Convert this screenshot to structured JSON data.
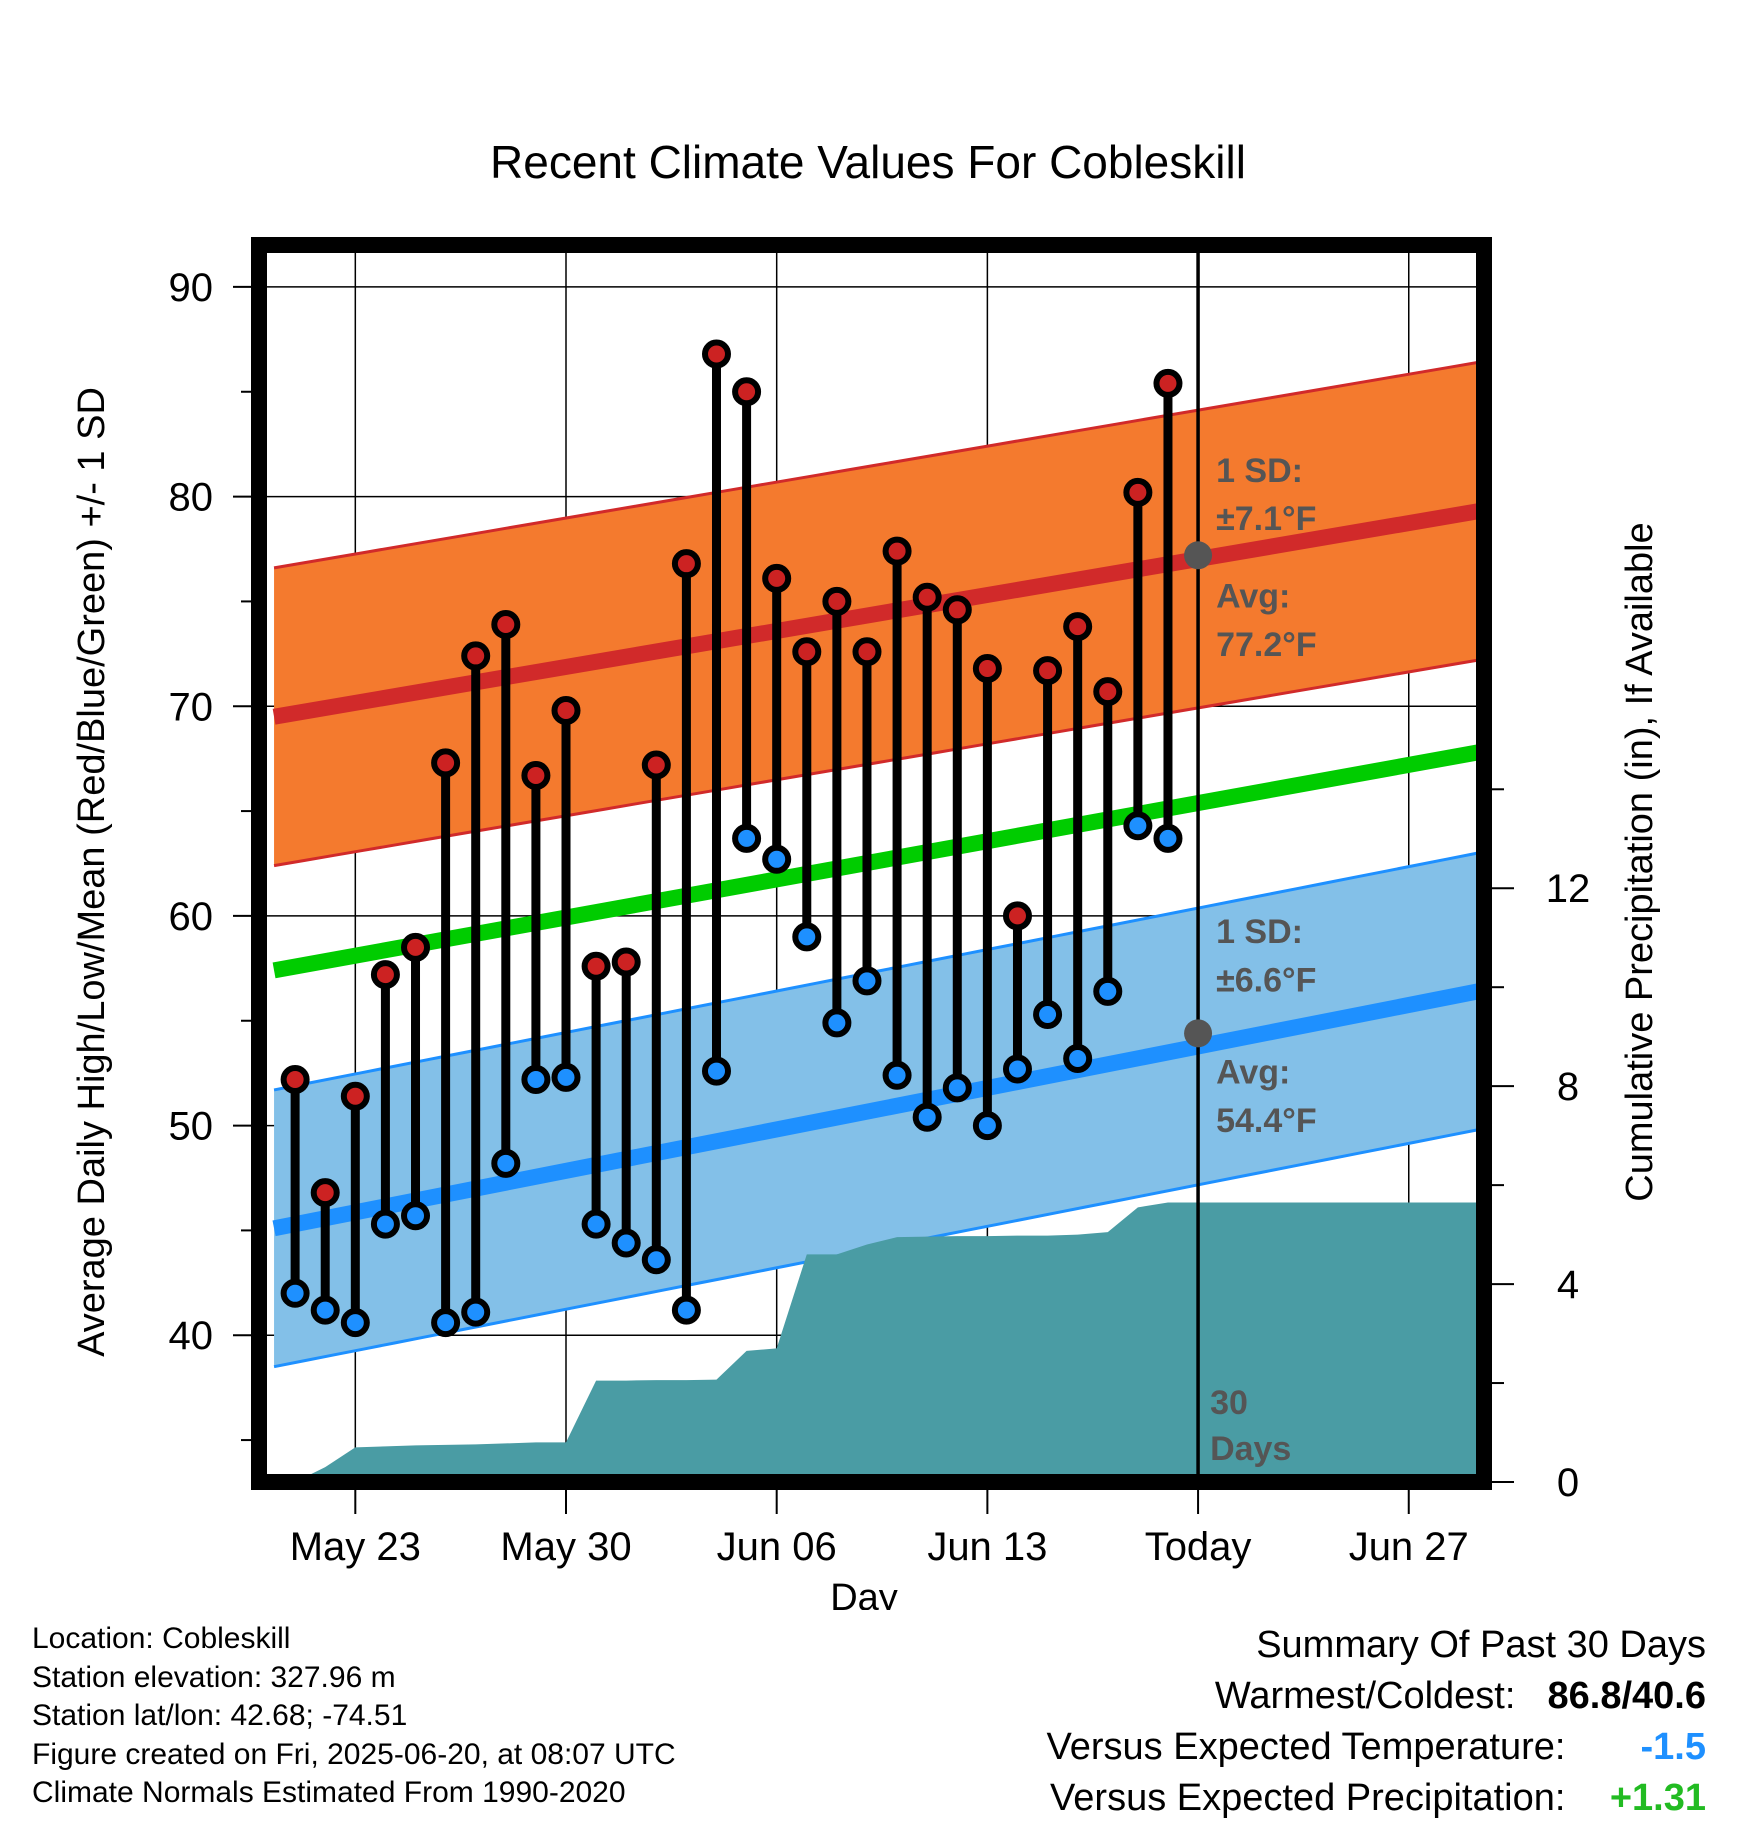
{
  "chart_data": {
    "type": "line",
    "title": "Recent Climate Values For Cobleskill",
    "xlabel": "Day",
    "ylabel_left": "Average Daily High/Low/Mean (Red/Blue/Green) +/- 1 SD",
    "ylabel_right": "Cumulative Precipitation (in), If Available",
    "x_ticks": [
      "May 23",
      "May 30",
      "Jun 06",
      "Jun 13",
      "Today",
      "Jun 27"
    ],
    "x_tick_days": [
      23,
      30,
      37,
      44,
      51,
      58
    ],
    "xlim": [
      19.8,
      60.5
    ],
    "ylim_left": [
      33,
      92
    ],
    "ylim_right": [
      0,
      25
    ],
    "y_ticks_left": [
      "40",
      "50",
      "60",
      "70",
      "80",
      "90"
    ],
    "y_ticks_right": [
      "0",
      "4",
      "8",
      "12"
    ],
    "days": [
      21,
      22,
      23,
      24,
      25,
      26,
      27,
      28,
      29,
      30,
      31,
      32,
      33,
      34,
      35,
      36,
      37,
      38,
      39,
      40,
      41,
      42,
      43,
      44,
      45,
      46,
      47,
      48,
      49,
      50
    ],
    "highs": [
      52.2,
      46.8,
      51.4,
      57.2,
      58.5,
      67.3,
      72.4,
      73.9,
      66.7,
      69.8,
      57.6,
      57.8,
      67.2,
      76.8,
      86.8,
      85.0,
      76.1,
      72.6,
      75.0,
      72.6,
      77.4,
      75.2,
      74.6,
      71.8,
      60.0,
      71.7,
      73.8,
      70.7,
      80.2,
      85.4
    ],
    "lows": [
      42.0,
      41.2,
      40.6,
      45.3,
      45.7,
      40.6,
      41.1,
      48.2,
      52.2,
      52.3,
      45.3,
      44.4,
      43.6,
      41.2,
      52.6,
      63.7,
      62.7,
      59.0,
      54.9,
      56.9,
      52.4,
      50.4,
      51.8,
      50.0,
      52.7,
      55.3,
      53.2,
      56.4,
      64.3,
      63.7
    ],
    "normal_high": {
      "start": 69.5,
      "end": 79.3,
      "today": 77.2,
      "sd": 7.1
    },
    "normal_low": {
      "start": 45.1,
      "end": 56.4,
      "today": 54.4,
      "sd": 6.6
    },
    "normal_mean": {
      "start": 57.4,
      "end": 67.8
    },
    "band_days": [
      20.3,
      60.3
    ],
    "precip_days": [
      21,
      22,
      23,
      24,
      25,
      26,
      27,
      28,
      29,
      30,
      31,
      32,
      33,
      34,
      35,
      36,
      37,
      38,
      39,
      40,
      41,
      42,
      43,
      44,
      45,
      46,
      47,
      48,
      49,
      50,
      51,
      60.3
    ],
    "precip_cum": [
      0,
      0.3,
      0.7,
      0.72,
      0.74,
      0.75,
      0.76,
      0.78,
      0.8,
      0.8,
      2.05,
      2.05,
      2.06,
      2.06,
      2.07,
      2.65,
      2.7,
      4.6,
      4.6,
      4.8,
      4.95,
      4.96,
      4.97,
      4.97,
      4.98,
      4.98,
      5.0,
      5.05,
      5.55,
      5.65,
      5.65,
      5.65
    ],
    "today_label": "30 Days",
    "today_day": 51,
    "sd_high_label": [
      "1 SD:",
      "±7.1°F"
    ],
    "avg_high_label": [
      "Avg:",
      "77.2°F"
    ],
    "sd_low_label": [
      "1 SD:",
      "±6.6°F"
    ],
    "avg_low_label": [
      "Avg:",
      "54.4°F"
    ],
    "colors": {
      "high_band": "#f47a2e",
      "high_line": "#d12a2a",
      "low_band": "#83c0e8",
      "low_line": "#1e90ff",
      "mean_line": "#00cc00",
      "precip": "#4a9ca4",
      "high_dot": "#cc2222",
      "low_dot": "#1e90ff",
      "avg_dot": "#555555"
    }
  },
  "meta": {
    "location": "Location: Cobleskill",
    "elevation": "Station elevation: 327.96 m",
    "latlon": "Station lat/lon: 42.68; -74.51",
    "created": "Figure created on Fri, 2025-06-20, at 08:07 UTC",
    "normals": "Climate Normals Estimated From 1990-2020"
  },
  "summary": {
    "heading": "Summary Of Past 30 Days",
    "warmest_label": "Warmest/Coldest:",
    "warmest_value": "86.8/40.6",
    "temp_label": "Versus Expected Temperature:",
    "temp_value": "-1.5",
    "temp_color": "#1e90ff",
    "precip_label": "Versus Expected Precipitation:",
    "precip_value": "+1.31",
    "precip_color": "#22bb22"
  }
}
